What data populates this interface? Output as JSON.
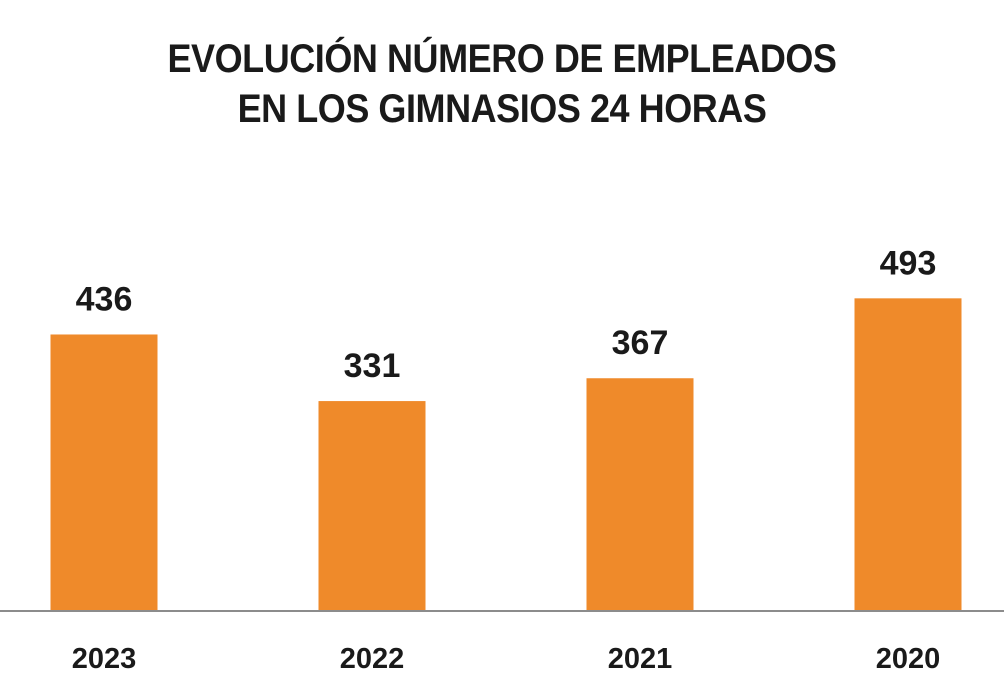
{
  "chart_data": {
    "type": "bar",
    "title_lines": [
      "EVOLUCIÓN NÚMERO DE EMPLEADOS",
      "EN LOS GIMNASIOS 24 HORAS"
    ],
    "categories": [
      "2023",
      "2022",
      "2021",
      "2020"
    ],
    "values": [
      436,
      331,
      367,
      493
    ],
    "xlabel": "",
    "ylabel": "",
    "ylim": [
      0,
      760
    ],
    "grid": false,
    "legend": "none",
    "bar_color": "#ef8a2a"
  }
}
